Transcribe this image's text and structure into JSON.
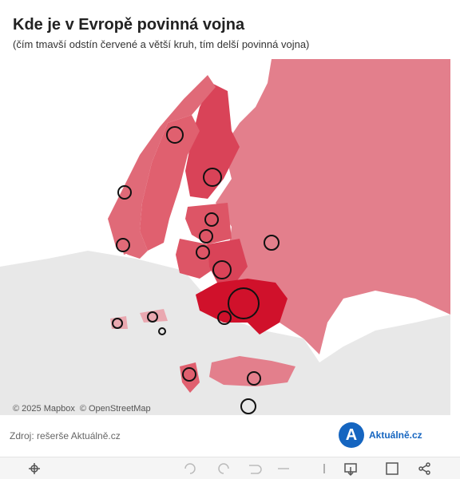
{
  "header": {
    "title": "Kde je v Evropě povinná vojna",
    "subtitle": "(čím tmavší odstín červené a větší kruh, tím delší povinná vojna)"
  },
  "map": {
    "attribution": [
      "© 2025 Mapbox",
      "© OpenStreetMap"
    ]
  },
  "footer": {
    "source": "Zdroj: rešerše Aktuálně.cz",
    "logo_text": "Aktuálně.cz"
  }
}
